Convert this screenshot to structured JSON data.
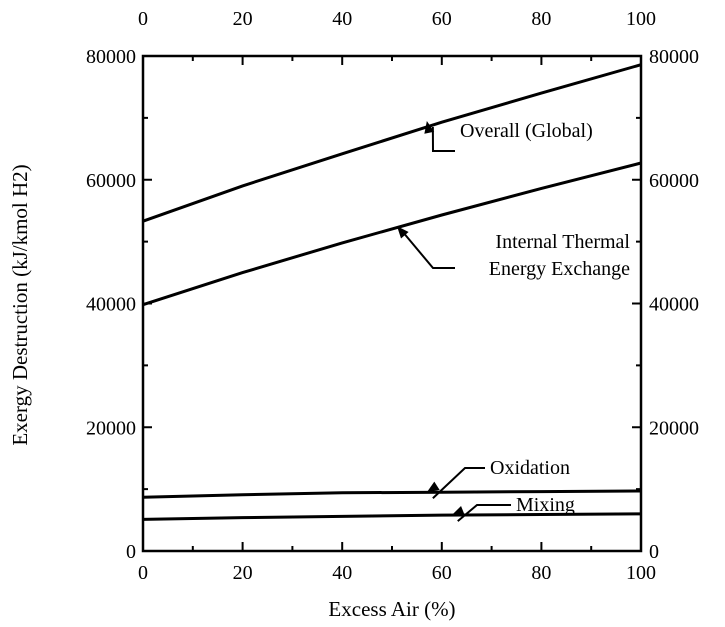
{
  "chart_data": {
    "type": "line",
    "title": "",
    "xlabel": "Excess Air (%)",
    "ylabel": "Exergy Destruction (kJ/kmol H2)",
    "xlim": [
      0,
      100
    ],
    "ylim": [
      0,
      80000
    ],
    "x_ticks": [
      0,
      20,
      40,
      60,
      80,
      100
    ],
    "y_ticks": [
      0,
      20000,
      40000,
      60000,
      80000
    ],
    "x_tick_labels": [
      "0",
      "20",
      "40",
      "60",
      "80",
      "100"
    ],
    "y_tick_labels": [
      "0",
      "20000",
      "40000",
      "60000",
      "80000"
    ],
    "grid": false,
    "legend": "none",
    "mirror_axes": true,
    "x": [
      0,
      20,
      40,
      60,
      80,
      100
    ],
    "series": [
      {
        "values": [
          53300,
          59000,
          64200,
          69300,
          74000,
          78600
        ]
      },
      {
        "values": [
          39800,
          45000,
          49800,
          54300,
          58600,
          62700
        ]
      },
      {
        "values": [
          8700,
          9100,
          9400,
          9500,
          9600,
          9700
        ]
      },
      {
        "values": [
          5100,
          5400,
          5600,
          5800,
          5900,
          6000
        ]
      }
    ],
    "annotations": [
      {
        "series": 0,
        "lines": [
          "Overall (Global)"
        ],
        "x": 57,
        "y": 69500
      },
      {
        "series": 1,
        "lines": [
          "Internal Thermal",
          "Energy Exchange"
        ],
        "x": 51,
        "y": 52500
      },
      {
        "series": 2,
        "lines": [
          "Oxidation"
        ],
        "x": 57,
        "y": 9500
      },
      {
        "series": 3,
        "lines": [
          "Mixing"
        ],
        "x": 62,
        "y": 5800
      }
    ]
  }
}
